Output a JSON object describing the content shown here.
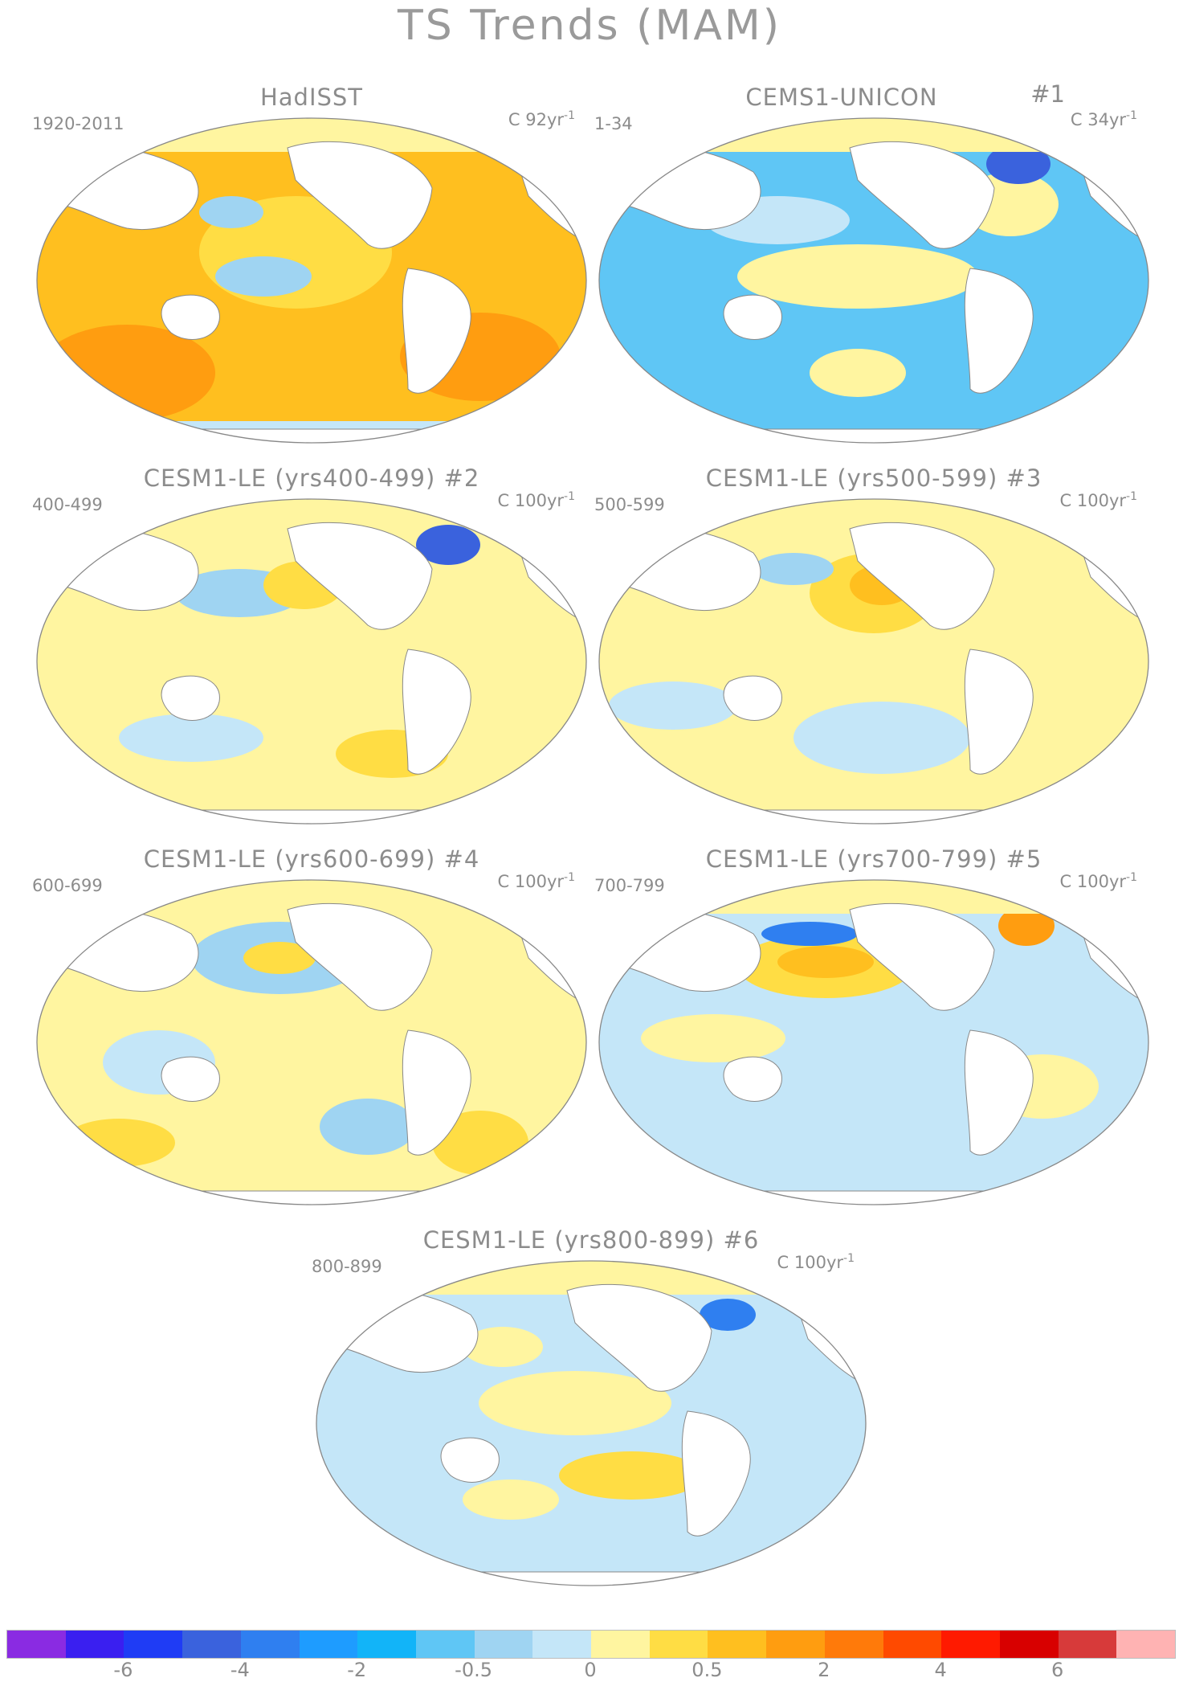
{
  "figure": {
    "title": "TS Trends (MAM)"
  },
  "panels": [
    {
      "title": "HadISST",
      "number": "",
      "period": "1920-2011",
      "units": "C 92yr",
      "units_exp": "-1"
    },
    {
      "title": "CEMS1-UNICON",
      "number": "#1",
      "period": "1-34",
      "units": "C 34yr",
      "units_exp": "-1"
    },
    {
      "title": "CESM1-LE (yrs400-499) #2",
      "number": "",
      "period": "400-499",
      "units": "C 100yr",
      "units_exp": "-1"
    },
    {
      "title": "CESM1-LE (yrs500-599) #3",
      "number": "",
      "period": "500-599",
      "units": "C 100yr",
      "units_exp": "-1"
    },
    {
      "title": "CESM1-LE (yrs600-699) #4",
      "number": "",
      "period": "600-699",
      "units": "C 100yr",
      "units_exp": "-1"
    },
    {
      "title": "CESM1-LE (yrs700-799) #5",
      "number": "",
      "period": "700-799",
      "units": "C 100yr",
      "units_exp": "-1"
    },
    {
      "title": "CESM1-LE (yrs800-899) #6",
      "number": "",
      "period": "800-899",
      "units": "C 100yr",
      "units_exp": "-1"
    }
  ],
  "colorbar": {
    "colors": [
      "#8a2be2",
      "#3a1ff0",
      "#1f3cf5",
      "#3a62dd",
      "#2f7ff0",
      "#1e9cff",
      "#12b4f8",
      "#5fc6f5",
      "#9fd4f2",
      "#c4e6f8",
      "#fff5a0",
      "#ffdd44",
      "#ffbf1f",
      "#ff9d10",
      "#ff7a0a",
      "#ff4a00",
      "#ff1a00",
      "#d80000",
      "#d73a3a",
      "#ffb3b3"
    ],
    "tick_labels": [
      "-6",
      "-4",
      "-2",
      "-0.5",
      "0",
      "0.5",
      "2",
      "4",
      "6"
    ]
  },
  "palette": {
    "land": "#ffffff",
    "outline": "#888888"
  }
}
